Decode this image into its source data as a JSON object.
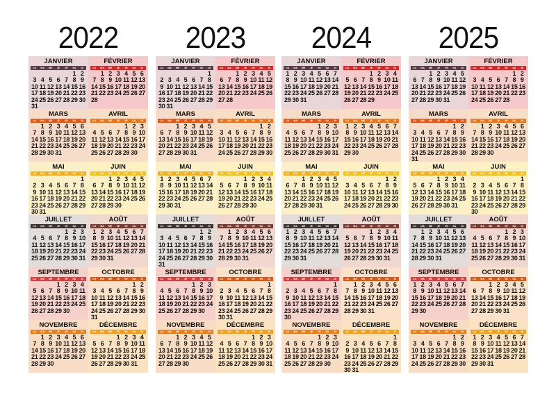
{
  "dow_labels": [
    "LU",
    "MA",
    "ME",
    "JE",
    "VE",
    "SA",
    "DI"
  ],
  "month_names": [
    "JANVIER",
    "FÉVRIER",
    "MARS",
    "AVRIL",
    "MAI",
    "JUIN",
    "JUILLET",
    "AOÛT",
    "SEPTEMBRE",
    "OCTOBRE",
    "NOVEMBRE",
    "DÉCEMBRE"
  ],
  "years": [
    "2022",
    "2023",
    "2024",
    "2025"
  ],
  "colors": {
    "row_bg": [
      [
        "#e9d6d8",
        "#f5c9c9"
      ],
      [
        "#f6dcc8",
        "#f8dec5"
      ],
      [
        "#fbf0c7",
        "#fdf1c4"
      ],
      [
        "#e2dcdb",
        "#f0d8d0"
      ],
      [
        "#f6d1cc",
        "#f9e2c9"
      ],
      [
        "#f8dcc3",
        "#fbe2c0"
      ]
    ],
    "dow_bar": [
      [
        "#5a3c48",
        "#d42a2a"
      ],
      [
        "#e05a1a",
        "#e87820"
      ],
      [
        "#f0b020",
        "#f2c020"
      ],
      [
        "#3c3030",
        "#7a3a30"
      ],
      [
        "#d44040",
        "#d85a1a"
      ],
      [
        "#e88020",
        "#f0a020"
      ]
    ]
  }
}
